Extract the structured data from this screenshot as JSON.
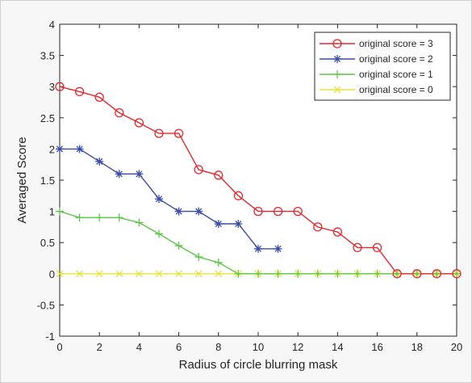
{
  "chart_data": {
    "type": "line",
    "title": "",
    "xlabel": "Radius of circle blurring mask",
    "ylabel": "Averaged Score",
    "xlim": [
      0,
      20
    ],
    "ylim": [
      -1,
      4
    ],
    "xticks": [
      "0",
      "2",
      "4",
      "6",
      "8",
      "10",
      "12",
      "14",
      "16",
      "18",
      "20"
    ],
    "yticks": [
      "-1",
      "-0.5",
      "0",
      "0.5",
      "1",
      "1.5",
      "2",
      "2.5",
      "3",
      "3.5",
      "4"
    ],
    "grid": false,
    "legend_position": "top-right",
    "series": [
      {
        "name": "original score = 3",
        "color": "#e8262b",
        "marker": "circle",
        "x": [
          0,
          1,
          2,
          3,
          4,
          5,
          6,
          7,
          8,
          9,
          10,
          11,
          12,
          13,
          14,
          15,
          16,
          17,
          18,
          19,
          20
        ],
        "y": [
          3.0,
          2.92,
          2.83,
          2.58,
          2.42,
          2.25,
          2.25,
          1.67,
          1.58,
          1.25,
          1.0,
          1.0,
          1.0,
          0.75,
          0.67,
          0.42,
          0.42,
          0,
          0,
          0,
          0
        ]
      },
      {
        "name": "original score = 2",
        "color": "#3a4ba8",
        "marker": "asterisk",
        "x": [
          0,
          1,
          2,
          3,
          4,
          5,
          6,
          7,
          8,
          9,
          10,
          11
        ],
        "y": [
          2.0,
          2.0,
          1.8,
          1.6,
          1.6,
          1.2,
          1.0,
          1.0,
          0.8,
          0.8,
          0.4,
          0.4
        ]
      },
      {
        "name": "original score = 1",
        "color": "#5cc646",
        "marker": "plus",
        "x": [
          0,
          1,
          2,
          3,
          4,
          5,
          6,
          7,
          8,
          9,
          10,
          11,
          12,
          13,
          14,
          15,
          16,
          17,
          18,
          19,
          20
        ],
        "y": [
          1.0,
          0.9,
          0.9,
          0.9,
          0.82,
          0.64,
          0.45,
          0.27,
          0.18,
          0,
          0,
          0,
          0,
          0,
          0,
          0,
          0,
          0,
          0,
          0,
          0
        ]
      },
      {
        "name": "original score = 0",
        "color": "#e8e23a",
        "marker": "x",
        "x": [
          0,
          1,
          2,
          3,
          4,
          5,
          6,
          7,
          8,
          9,
          10,
          11,
          12,
          13,
          14,
          15,
          16,
          17,
          18,
          19,
          20
        ],
        "y": [
          0,
          0,
          0,
          0,
          0,
          0,
          0,
          0,
          0,
          0,
          0,
          0,
          0,
          0,
          0,
          0,
          0,
          0,
          0,
          0,
          0
        ]
      }
    ]
  }
}
